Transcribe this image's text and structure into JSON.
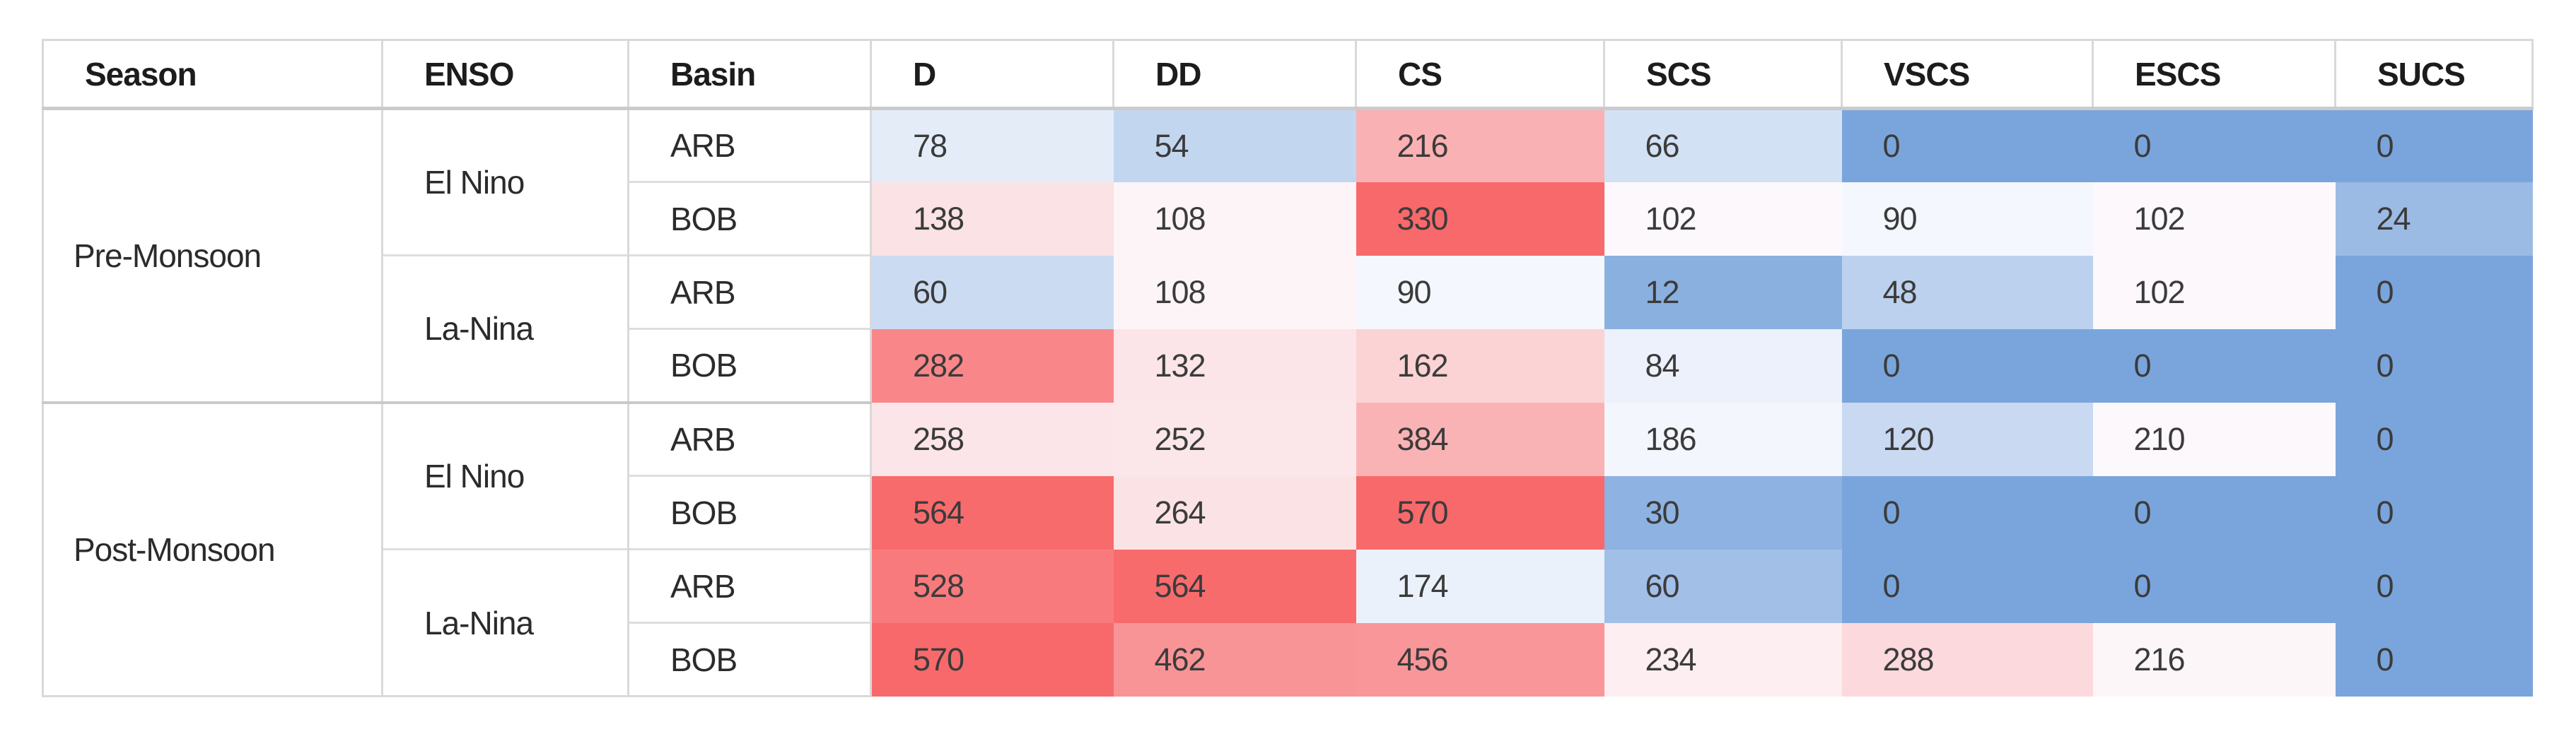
{
  "table": {
    "headers": [
      "Season",
      "ENSO",
      "Basin",
      "D",
      "DD",
      "CS",
      "SCS",
      "VSCS",
      "ESCS",
      "SUCS"
    ]
  },
  "chart_data": {
    "type": "heatmap",
    "columns": [
      "D",
      "DD",
      "CS",
      "SCS",
      "VSCS",
      "ESCS",
      "SUCS"
    ],
    "rows": [
      {
        "season": "Pre-Monsoon",
        "enso": "El Nino",
        "basin": "ARB",
        "values": [
          78,
          54,
          216,
          66,
          0,
          0,
          0
        ]
      },
      {
        "season": "Pre-Monsoon",
        "enso": "El Nino",
        "basin": "BOB",
        "values": [
          138,
          108,
          330,
          102,
          90,
          102,
          24
        ]
      },
      {
        "season": "Pre-Monsoon",
        "enso": "La-Nina",
        "basin": "ARB",
        "values": [
          60,
          108,
          90,
          12,
          48,
          102,
          0
        ]
      },
      {
        "season": "Pre-Monsoon",
        "enso": "La-Nina",
        "basin": "BOB",
        "values": [
          282,
          132,
          162,
          84,
          0,
          0,
          0
        ]
      },
      {
        "season": "Post-Monsoon",
        "enso": "El Nino",
        "basin": "ARB",
        "values": [
          258,
          252,
          384,
          186,
          120,
          210,
          0
        ]
      },
      {
        "season": "Post-Monsoon",
        "enso": "El Nino",
        "basin": "BOB",
        "values": [
          564,
          264,
          570,
          30,
          0,
          0,
          0
        ]
      },
      {
        "season": "Post-Monsoon",
        "enso": "La-Nina",
        "basin": "ARB",
        "values": [
          528,
          564,
          174,
          60,
          0,
          0,
          0
        ]
      },
      {
        "season": "Post-Monsoon",
        "enso": "La-Nina",
        "basin": "BOB",
        "values": [
          570,
          462,
          456,
          234,
          288,
          216,
          0
        ]
      }
    ],
    "merges": {
      "season_span": 4,
      "enso_span": 2
    },
    "layout": {
      "grid": "off",
      "value_cells_borderless": true
    },
    "colorscale": {
      "min_color": "#7AA5DC",
      "mid_color": "#FCFCFF",
      "max_color": "#F8696B",
      "blocks": [
        {
          "row_start": 0,
          "row_end": 3,
          "min": 0,
          "mid": 96,
          "max": 330
        },
        {
          "row_start": 4,
          "row_end": 7,
          "min": 0,
          "mid": 200,
          "max": 570
        }
      ]
    }
  }
}
